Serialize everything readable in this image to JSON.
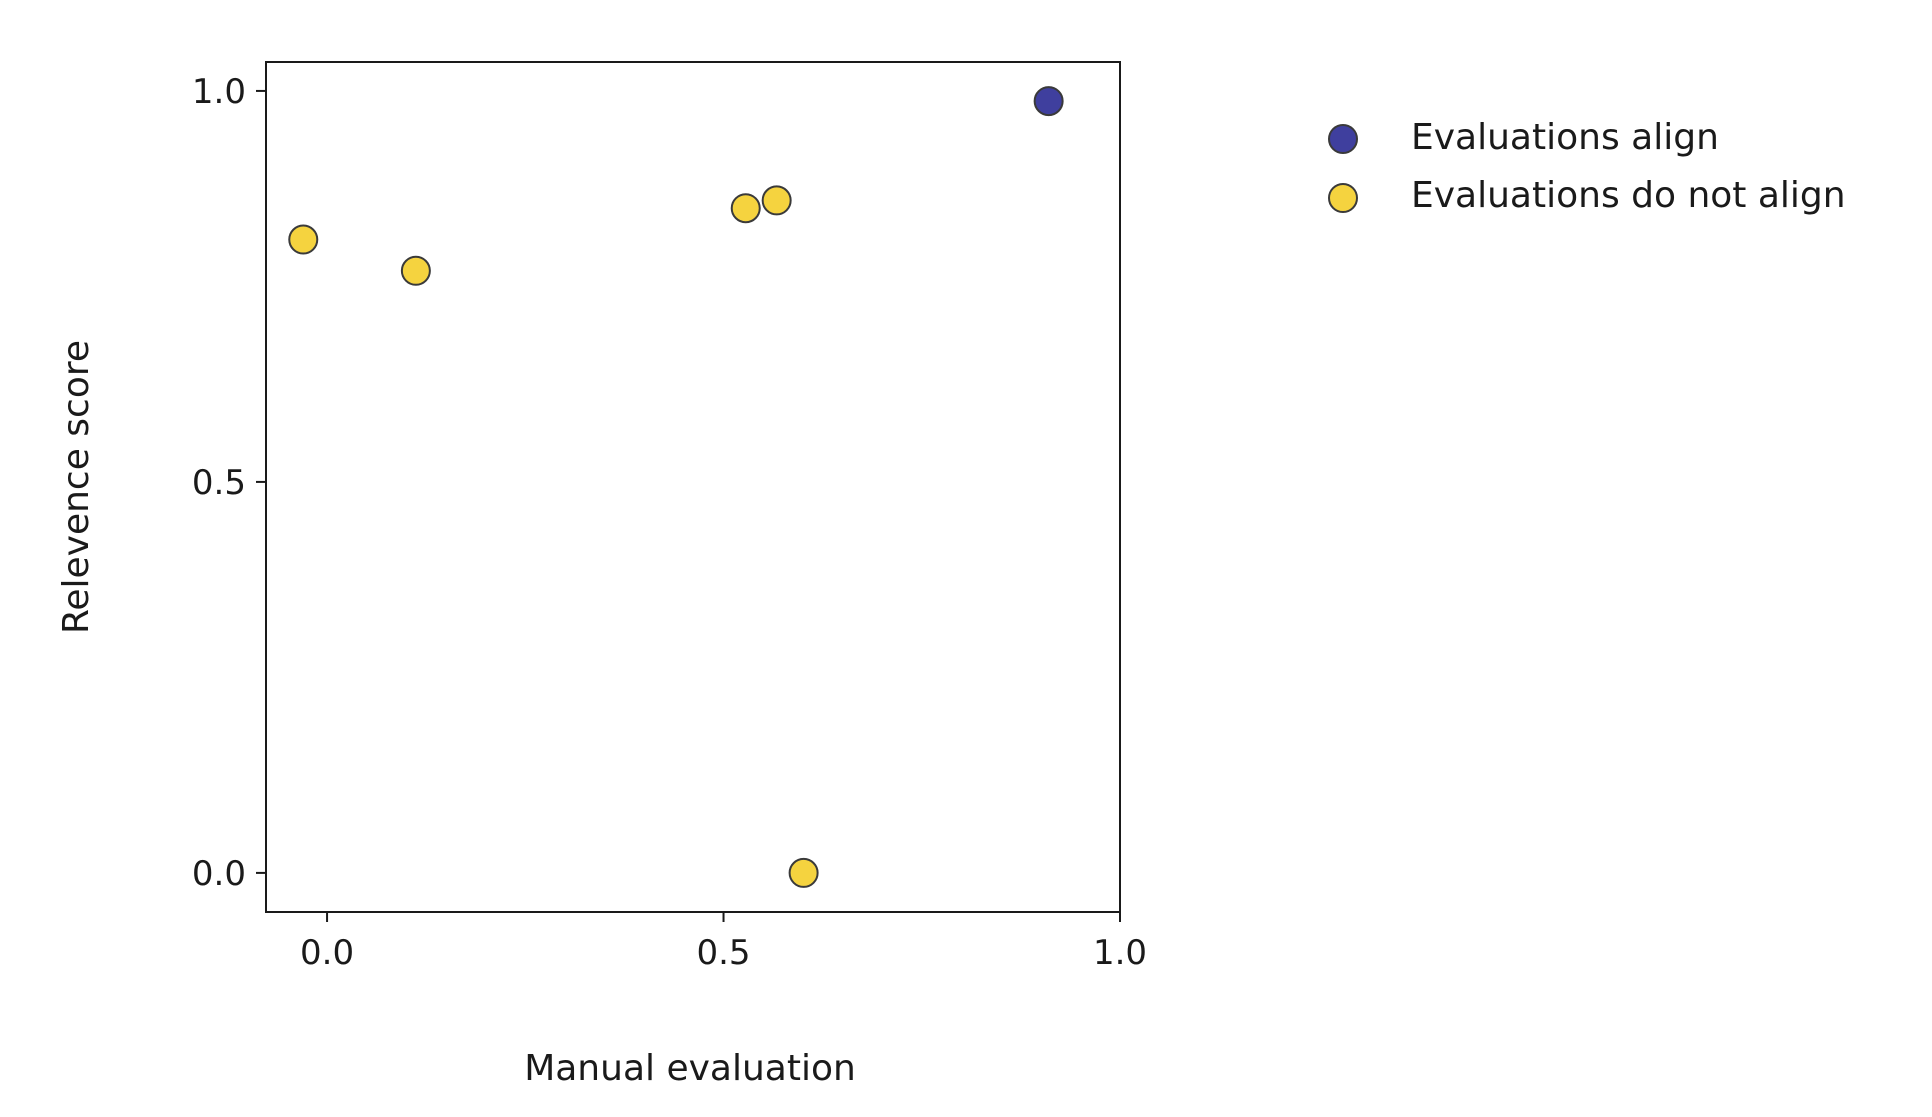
{
  "chart_data": {
    "type": "scatter",
    "xlabel": "Manual evaluation",
    "ylabel": "Relevence score",
    "xlim": [
      -0.077,
      1.0
    ],
    "ylim": [
      -0.05,
      1.037
    ],
    "xticks": [
      0.0,
      0.5,
      1.0
    ],
    "xtick_labels": [
      "0.0",
      "0.5",
      "1.0"
    ],
    "yticks": [
      0.0,
      0.5,
      1.0
    ],
    "ytick_labels": [
      "0.0",
      "0.5",
      "1.0"
    ],
    "grid": false,
    "legend_placement": "outside-top-right",
    "series": [
      {
        "name": "Evaluations align",
        "color": "#3f3f9e",
        "points": [
          {
            "x": 0.91,
            "y": 0.987
          }
        ]
      },
      {
        "name": "Evaluations do not align",
        "color": "#f5d33f",
        "points": [
          {
            "x": -0.03,
            "y": 0.81
          },
          {
            "x": 0.112,
            "y": 0.77
          },
          {
            "x": 0.528,
            "y": 0.85
          },
          {
            "x": 0.567,
            "y": 0.86
          },
          {
            "x": 0.601,
            "y": 0.0
          }
        ]
      }
    ]
  }
}
